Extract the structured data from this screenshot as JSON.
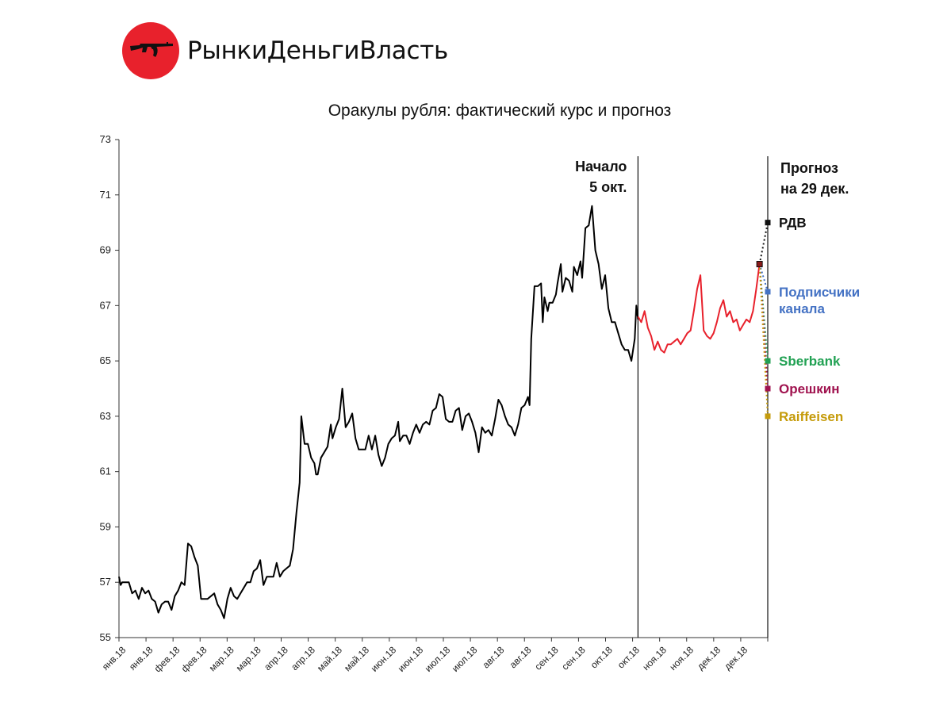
{
  "brand": {
    "name": "РынкиДеньгиВласть",
    "logo_color": "#e8212c",
    "logo_icon": "rifle-icon"
  },
  "chart_data": {
    "type": "line",
    "title": "Оракулы рубля: фактический курс и прогноз",
    "xlabel": "",
    "ylabel": "",
    "ylim": [
      55,
      73
    ],
    "yticks": [
      55,
      57,
      59,
      61,
      63,
      65,
      67,
      69,
      71,
      73
    ],
    "xtick_labels": [
      "янв.18",
      "янв.18",
      "фев.18",
      "фев.18",
      "мар.18",
      "мар.18",
      "апр.18",
      "апр.18",
      "май.18",
      "май.18",
      "июн.18",
      "июн.18",
      "июл.18",
      "июл.18",
      "авг.18",
      "авг.18",
      "сен.18",
      "сен.18",
      "окт.18",
      "окт.18",
      "ноя.18",
      "ноя.18",
      "дек.18",
      "дек.18"
    ],
    "x_start": "2018-01-01",
    "grid": false,
    "series": [
      {
        "name": "",
        "color": "#000000",
        "points": [
          [
            "2018-01-01",
            57.2
          ],
          [
            "2018-01-02",
            56.9
          ],
          [
            "2018-01-03",
            57.0
          ],
          [
            "2018-01-05",
            57.0
          ],
          [
            "2018-01-07",
            57.0
          ],
          [
            "2018-01-09",
            56.6
          ],
          [
            "2018-01-11",
            56.7
          ],
          [
            "2018-01-13",
            56.4
          ],
          [
            "2018-01-15",
            56.8
          ],
          [
            "2018-01-17",
            56.6
          ],
          [
            "2018-01-19",
            56.7
          ],
          [
            "2018-01-21",
            56.4
          ],
          [
            "2018-01-23",
            56.3
          ],
          [
            "2018-01-25",
            55.9
          ],
          [
            "2018-01-27",
            56.2
          ],
          [
            "2018-01-29",
            56.3
          ],
          [
            "2018-01-31",
            56.3
          ],
          [
            "2018-02-02",
            56.0
          ],
          [
            "2018-02-04",
            56.5
          ],
          [
            "2018-02-06",
            56.7
          ],
          [
            "2018-02-08",
            57.0
          ],
          [
            "2018-02-10",
            56.9
          ],
          [
            "2018-02-12",
            58.4
          ],
          [
            "2018-02-14",
            58.3
          ],
          [
            "2018-02-16",
            57.9
          ],
          [
            "2018-02-18",
            57.6
          ],
          [
            "2018-02-20",
            56.4
          ],
          [
            "2018-02-22",
            56.4
          ],
          [
            "2018-02-24",
            56.4
          ],
          [
            "2018-02-26",
            56.5
          ],
          [
            "2018-02-28",
            56.6
          ],
          [
            "2018-03-02",
            56.2
          ],
          [
            "2018-03-04",
            56.0
          ],
          [
            "2018-03-06",
            55.7
          ],
          [
            "2018-03-08",
            56.4
          ],
          [
            "2018-03-10",
            56.8
          ],
          [
            "2018-03-12",
            56.5
          ],
          [
            "2018-03-14",
            56.4
          ],
          [
            "2018-03-16",
            56.6
          ],
          [
            "2018-03-18",
            56.8
          ],
          [
            "2018-03-20",
            57.0
          ],
          [
            "2018-03-22",
            57.0
          ],
          [
            "2018-03-24",
            57.4
          ],
          [
            "2018-03-26",
            57.5
          ],
          [
            "2018-03-28",
            57.8
          ],
          [
            "2018-03-30",
            56.9
          ],
          [
            "2018-04-01",
            57.2
          ],
          [
            "2018-04-03",
            57.2
          ],
          [
            "2018-04-05",
            57.2
          ],
          [
            "2018-04-07",
            57.7
          ],
          [
            "2018-04-09",
            57.2
          ],
          [
            "2018-04-11",
            57.4
          ],
          [
            "2018-04-13",
            57.5
          ],
          [
            "2018-04-15",
            57.6
          ],
          [
            "2018-04-17",
            58.2
          ],
          [
            "2018-04-19",
            59.5
          ],
          [
            "2018-04-21",
            60.6
          ],
          [
            "2018-04-22",
            63.0
          ],
          [
            "2018-04-24",
            62.0
          ],
          [
            "2018-04-26",
            62.0
          ],
          [
            "2018-04-28",
            61.5
          ],
          [
            "2018-04-30",
            61.3
          ],
          [
            "2018-05-01",
            60.9
          ],
          [
            "2018-05-02",
            60.9
          ],
          [
            "2018-05-04",
            61.5
          ],
          [
            "2018-05-06",
            61.7
          ],
          [
            "2018-05-08",
            61.9
          ],
          [
            "2018-05-10",
            62.7
          ],
          [
            "2018-05-11",
            62.2
          ],
          [
            "2018-05-13",
            62.6
          ],
          [
            "2018-05-15",
            62.9
          ],
          [
            "2018-05-17",
            64.0
          ],
          [
            "2018-05-19",
            62.6
          ],
          [
            "2018-05-21",
            62.8
          ],
          [
            "2018-05-23",
            63.1
          ],
          [
            "2018-05-25",
            62.2
          ],
          [
            "2018-05-27",
            61.8
          ],
          [
            "2018-05-29",
            61.8
          ],
          [
            "2018-05-31",
            61.8
          ],
          [
            "2018-06-02",
            62.3
          ],
          [
            "2018-06-04",
            61.8
          ],
          [
            "2018-06-06",
            62.3
          ],
          [
            "2018-06-08",
            61.6
          ],
          [
            "2018-06-10",
            61.2
          ],
          [
            "2018-06-12",
            61.5
          ],
          [
            "2018-06-14",
            62.0
          ],
          [
            "2018-06-16",
            62.2
          ],
          [
            "2018-06-18",
            62.3
          ],
          [
            "2018-06-20",
            62.8
          ],
          [
            "2018-06-21",
            62.1
          ],
          [
            "2018-06-23",
            62.3
          ],
          [
            "2018-06-25",
            62.3
          ],
          [
            "2018-06-27",
            62.0
          ],
          [
            "2018-06-29",
            62.4
          ],
          [
            "2018-07-01",
            62.7
          ],
          [
            "2018-07-03",
            62.4
          ],
          [
            "2018-07-05",
            62.7
          ],
          [
            "2018-07-07",
            62.8
          ],
          [
            "2018-07-09",
            62.7
          ],
          [
            "2018-07-11",
            63.2
          ],
          [
            "2018-07-13",
            63.3
          ],
          [
            "2018-07-15",
            63.8
          ],
          [
            "2018-07-17",
            63.7
          ],
          [
            "2018-07-19",
            62.9
          ],
          [
            "2018-07-21",
            62.8
          ],
          [
            "2018-07-23",
            62.8
          ],
          [
            "2018-07-25",
            63.2
          ],
          [
            "2018-07-27",
            63.3
          ],
          [
            "2018-07-29",
            62.5
          ],
          [
            "2018-07-31",
            63.0
          ],
          [
            "2018-08-02",
            63.1
          ],
          [
            "2018-08-04",
            62.8
          ],
          [
            "2018-08-06",
            62.4
          ],
          [
            "2018-08-08",
            61.7
          ],
          [
            "2018-08-10",
            62.6
          ],
          [
            "2018-08-12",
            62.4
          ],
          [
            "2018-08-14",
            62.5
          ],
          [
            "2018-08-16",
            62.3
          ],
          [
            "2018-08-18",
            62.9
          ],
          [
            "2018-08-20",
            63.6
          ],
          [
            "2018-08-22",
            63.4
          ],
          [
            "2018-08-24",
            63.0
          ],
          [
            "2018-08-26",
            62.7
          ],
          [
            "2018-08-28",
            62.6
          ],
          [
            "2018-08-30",
            62.3
          ],
          [
            "2018-09-01",
            62.7
          ],
          [
            "2018-09-03",
            63.3
          ],
          [
            "2018-09-05",
            63.4
          ],
          [
            "2018-09-07",
            63.7
          ],
          [
            "2018-09-08",
            63.4
          ],
          [
            "2018-09-09",
            65.8
          ],
          [
            "2018-09-11",
            67.7
          ],
          [
            "2018-09-13",
            67.7
          ],
          [
            "2018-09-15",
            67.8
          ],
          [
            "2018-09-16",
            66.4
          ],
          [
            "2018-09-17",
            67.3
          ],
          [
            "2018-09-19",
            66.8
          ],
          [
            "2018-09-20",
            67.1
          ],
          [
            "2018-09-22",
            67.1
          ],
          [
            "2018-09-24",
            67.4
          ],
          [
            "2018-09-25",
            67.8
          ],
          [
            "2018-09-27",
            68.5
          ],
          [
            "2018-09-28",
            67.5
          ],
          [
            "2018-09-30",
            68.0
          ],
          [
            "2018-10-02",
            67.9
          ],
          [
            "2018-10-04",
            67.5
          ],
          [
            "2018-10-05",
            68.4
          ],
          [
            "2018-10-07",
            68.1
          ],
          [
            "2018-10-09",
            68.6
          ],
          [
            "2018-10-10",
            68.0
          ],
          [
            "2018-10-12",
            69.8
          ],
          [
            "2018-10-14",
            69.9
          ],
          [
            "2018-10-16",
            70.6
          ],
          [
            "2018-10-18",
            69.0
          ],
          [
            "2018-10-20",
            68.5
          ],
          [
            "2018-10-22",
            67.6
          ],
          [
            "2018-10-24",
            68.1
          ],
          [
            "2018-10-26",
            66.9
          ],
          [
            "2018-10-28",
            66.4
          ],
          [
            "2018-10-30",
            66.4
          ],
          [
            "2018-11-01",
            66.0
          ],
          [
            "2018-11-03",
            65.6
          ],
          [
            "2018-11-05",
            65.4
          ],
          [
            "2018-11-07",
            65.4
          ],
          [
            "2018-11-09",
            65.0
          ],
          [
            "2018-11-11",
            65.8
          ],
          [
            "2018-11-12",
            67.0
          ],
          [
            "2018-11-13",
            66.5
          ]
        ]
      },
      {
        "name": "",
        "color": "#e8212c",
        "points": [
          [
            "2018-11-13",
            66.6
          ],
          [
            "2018-11-15",
            66.4
          ],
          [
            "2018-11-17",
            66.8
          ],
          [
            "2018-11-19",
            66.2
          ],
          [
            "2018-11-21",
            65.9
          ],
          [
            "2018-11-23",
            65.4
          ],
          [
            "2018-11-25",
            65.7
          ],
          [
            "2018-11-27",
            65.4
          ],
          [
            "2018-11-29",
            65.3
          ],
          [
            "2018-12-01",
            65.6
          ],
          [
            "2018-12-03",
            65.6
          ],
          [
            "2018-12-05",
            65.7
          ],
          [
            "2018-12-07",
            65.8
          ],
          [
            "2018-12-09",
            65.6
          ],
          [
            "2018-12-11",
            65.8
          ],
          [
            "2018-12-13",
            66.0
          ],
          [
            "2018-12-15",
            66.1
          ],
          [
            "2018-12-17",
            66.8
          ],
          [
            "2018-12-19",
            67.6
          ],
          [
            "2018-12-21",
            68.1
          ],
          [
            "2018-12-23",
            66.1
          ],
          [
            "2018-12-25",
            65.9
          ],
          [
            "2018-12-27",
            65.8
          ],
          [
            "2018-12-29",
            66.0
          ],
          [
            "2018-12-31",
            66.4
          ],
          [
            "2019-01-02",
            66.9
          ],
          [
            "2019-01-04",
            67.2
          ],
          [
            "2019-01-06",
            66.6
          ],
          [
            "2019-01-08",
            66.8
          ],
          [
            "2019-01-10",
            66.4
          ],
          [
            "2019-01-12",
            66.5
          ],
          [
            "2019-01-14",
            66.1
          ],
          [
            "2019-01-16",
            66.3
          ],
          [
            "2019-01-18",
            66.5
          ],
          [
            "2019-01-20",
            66.4
          ],
          [
            "2019-01-22",
            66.8
          ],
          [
            "2019-01-24",
            67.6
          ],
          [
            "2019-01-26",
            68.5
          ]
        ]
      }
    ],
    "vlines": [
      {
        "x": "2018-11-13",
        "label_lines": [
          "Начало",
          "5 окт."
        ]
      },
      {
        "x": "2019-01-31",
        "label_lines": [
          "Прогноз",
          "на 29 дек."
        ]
      }
    ],
    "forecast_start": {
      "x": "2019-01-26",
      "y": 68.5
    },
    "forecasts": [
      {
        "name": "РДВ",
        "value": 70.0,
        "color": "#111111"
      },
      {
        "name": "Подписчики\nканала",
        "value": 67.5,
        "color": "#4472c4"
      },
      {
        "name": "Sberbank",
        "value": 65.0,
        "color": "#21a153"
      },
      {
        "name": "Орешкин",
        "value": 64.0,
        "color": "#a0134f"
      },
      {
        "name": "Raiffeisen",
        "value": 63.0,
        "color": "#c59b0a"
      }
    ]
  }
}
